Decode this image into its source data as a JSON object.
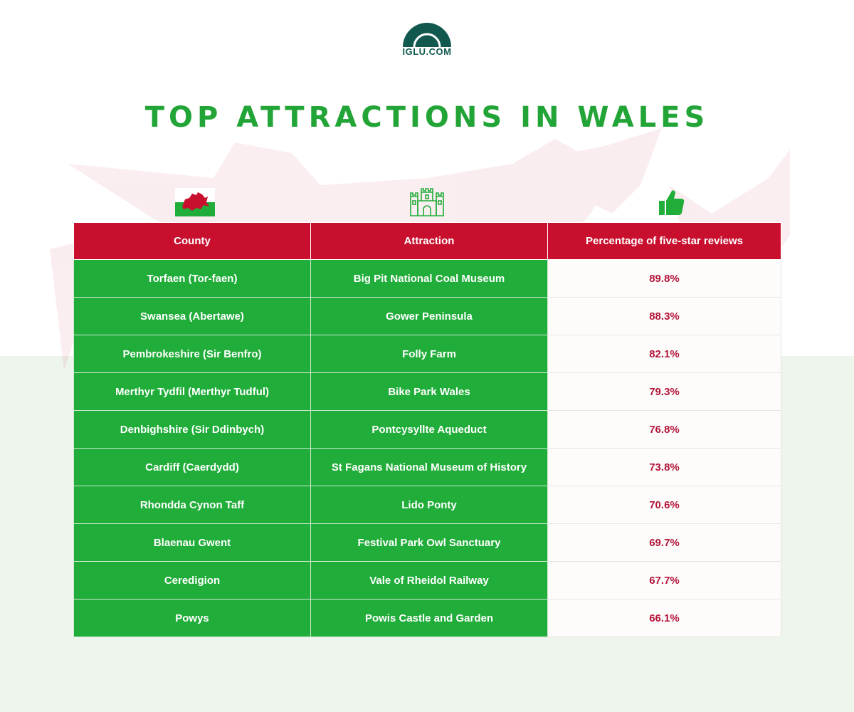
{
  "brand": {
    "logo_text": "IGLU.COM",
    "color": "#11594f"
  },
  "title": "TOP ATTRACTIONS IN WALES",
  "colors": {
    "header_red": "#c8102e",
    "green": "#21ad3a",
    "pct_text": "#b4153a"
  },
  "icons": [
    "welsh-flag-icon",
    "castle-icon",
    "thumbs-up-icon"
  ],
  "table": {
    "headers": [
      "County",
      "Attraction",
      "Percentage of five-star reviews"
    ],
    "rows": [
      [
        "Torfaen (Tor-faen)",
        "Big Pit National Coal Museum",
        "89.8%"
      ],
      [
        "Swansea (Abertawe)",
        "Gower Peninsula",
        "88.3%"
      ],
      [
        "Pembrokeshire (Sir Benfro)",
        "Folly Farm",
        "82.1%"
      ],
      [
        "Merthyr Tydfil (Merthyr Tudful)",
        "Bike Park Wales",
        "79.3%"
      ],
      [
        "Denbighshire (Sir Ddinbych)",
        "Pontcysyllte Aqueduct",
        "76.8%"
      ],
      [
        "Cardiff (Caerdydd)",
        "St Fagans National Museum of History",
        "73.8%"
      ],
      [
        "Rhondda Cynon Taff",
        "Lido Ponty",
        "70.6%"
      ],
      [
        "Blaenau Gwent",
        "Festival Park Owl Sanctuary",
        "69.7%"
      ],
      [
        "Ceredigion",
        "Vale of Rheidol Railway",
        "67.7%"
      ],
      [
        "Powys",
        "Powis Castle and Garden",
        "66.1%"
      ]
    ]
  }
}
